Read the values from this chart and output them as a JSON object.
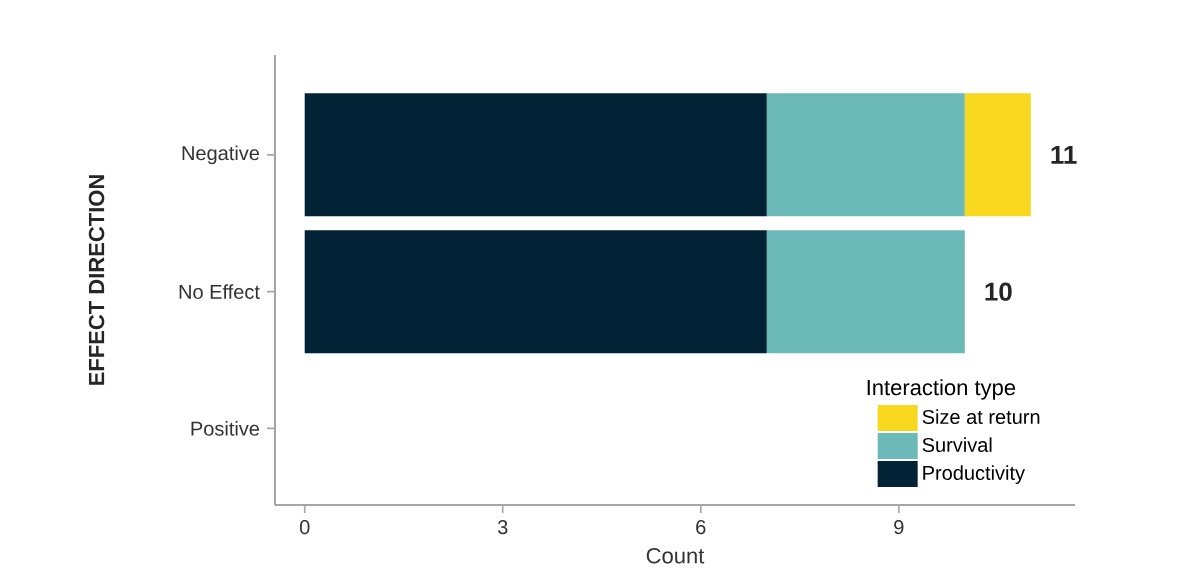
{
  "chart_data": {
    "type": "bar",
    "orientation": "horizontal",
    "stacked": true,
    "ylabel": "EFFECT DIRECTION",
    "xlabel": "Count",
    "legend_title": "Interaction type",
    "categories": [
      "Negative",
      "No Effect",
      "Positive"
    ],
    "series": [
      {
        "name": "Productivity",
        "color": "#022236",
        "values": [
          7,
          7,
          null
        ]
      },
      {
        "name": "Survival",
        "color": "#6bbab7",
        "values": [
          3,
          3,
          null
        ]
      },
      {
        "name": "Size at return",
        "color": "#f8d81e",
        "values": [
          1,
          null,
          null
        ]
      }
    ],
    "totals": [
      "11",
      "10",
      null
    ],
    "xlim": [
      -0.45,
      11.67
    ],
    "xticks": [
      0,
      3,
      6,
      9
    ],
    "legend": "bottom right",
    "grid": false
  }
}
